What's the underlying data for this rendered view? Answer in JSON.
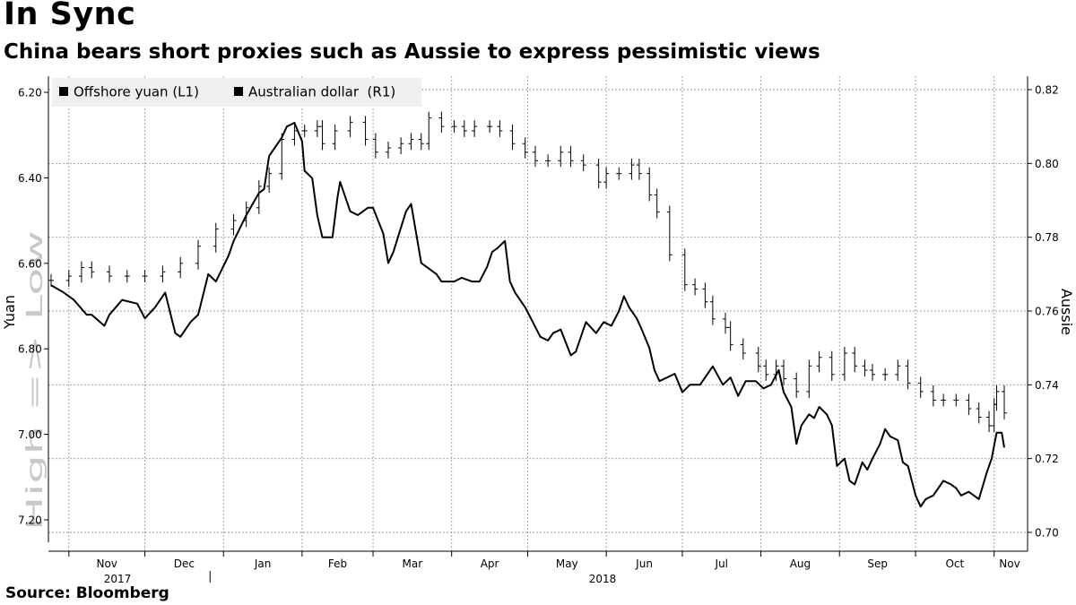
{
  "title": "In Sync",
  "subtitle": "China bears short proxies such as Aussie to express pessimistic views",
  "source": "Source: Bloomberg",
  "colors": {
    "line": "#000000",
    "grid": "#9a9a9a",
    "legend_bg": "#efefef",
    "watermark": "#c8c8c8"
  },
  "chart_data": {
    "type": "line",
    "left_axis": {
      "label": "Yuan",
      "inverted": true,
      "range": [
        6.2,
        7.2
      ],
      "ticks": [
        "6.20",
        "6.40",
        "6.60",
        "6.80",
        "7.00",
        "7.20"
      ]
    },
    "right_axis": {
      "label": "Aussie",
      "range": [
        0.7,
        0.82
      ],
      "ticks": [
        "0.82",
        "0.80",
        "0.78",
        "0.76",
        "0.74",
        "0.72",
        "0.70"
      ]
    },
    "direction_note": "High => Low",
    "x_axis": {
      "months": [
        "Nov",
        "Dec",
        "Jan",
        "Feb",
        "Mar",
        "Apr",
        "May",
        "Jun",
        "Jul",
        "Aug",
        "Sep",
        "Oct",
        "Nov"
      ],
      "years": [
        "2017",
        "2018"
      ],
      "range": [
        "2017-10-25",
        "2018-11-05"
      ]
    },
    "grid": true,
    "legend_position": "top-left",
    "series": [
      {
        "name": "Offshore yuan (L1)",
        "axis": "left",
        "style": "ohlc-bars",
        "points": [
          [
            "2017-10-25",
            6.64
          ],
          [
            "2017-11-01",
            6.63
          ],
          [
            "2017-11-06",
            6.61
          ],
          [
            "2017-11-10",
            6.62
          ],
          [
            "2017-11-17",
            6.63
          ],
          [
            "2017-11-24",
            6.63
          ],
          [
            "2017-12-01",
            6.63
          ],
          [
            "2017-12-08",
            6.62
          ],
          [
            "2017-12-15",
            6.6
          ],
          [
            "2017-12-22",
            6.56
          ],
          [
            "2017-12-29",
            6.52
          ],
          [
            "2018-01-05",
            6.5
          ],
          [
            "2018-01-10",
            6.47
          ],
          [
            "2018-01-15",
            6.42
          ],
          [
            "2018-01-19",
            6.39
          ],
          [
            "2018-01-24",
            6.31
          ],
          [
            "2018-01-29",
            6.29
          ],
          [
            "2018-02-02",
            6.29
          ],
          [
            "2018-02-07",
            6.28
          ],
          [
            "2018-02-09",
            6.32
          ],
          [
            "2018-02-14",
            6.29
          ],
          [
            "2018-02-20",
            6.27
          ],
          [
            "2018-02-26",
            6.31
          ],
          [
            "2018-03-02",
            6.34
          ],
          [
            "2018-03-07",
            6.33
          ],
          [
            "2018-03-12",
            6.32
          ],
          [
            "2018-03-16",
            6.31
          ],
          [
            "2018-03-20",
            6.32
          ],
          [
            "2018-03-23",
            6.26
          ],
          [
            "2018-03-28",
            6.28
          ],
          [
            "2018-04-02",
            6.28
          ],
          [
            "2018-04-06",
            6.29
          ],
          [
            "2018-04-10",
            6.28
          ],
          [
            "2018-04-16",
            6.28
          ],
          [
            "2018-04-20",
            6.29
          ],
          [
            "2018-04-25",
            6.32
          ],
          [
            "2018-04-30",
            6.34
          ],
          [
            "2018-05-04",
            6.36
          ],
          [
            "2018-05-09",
            6.36
          ],
          [
            "2018-05-14",
            6.34
          ],
          [
            "2018-05-18",
            6.36
          ],
          [
            "2018-05-23",
            6.37
          ],
          [
            "2018-05-29",
            6.41
          ],
          [
            "2018-06-01",
            6.39
          ],
          [
            "2018-06-06",
            6.39
          ],
          [
            "2018-06-11",
            6.37
          ],
          [
            "2018-06-14",
            6.39
          ],
          [
            "2018-06-18",
            6.44
          ],
          [
            "2018-06-21",
            6.48
          ],
          [
            "2018-06-26",
            6.58
          ],
          [
            "2018-07-02",
            6.65
          ],
          [
            "2018-07-06",
            6.66
          ],
          [
            "2018-07-10",
            6.69
          ],
          [
            "2018-07-13",
            6.73
          ],
          [
            "2018-07-18",
            6.75
          ],
          [
            "2018-07-20",
            6.79
          ],
          [
            "2018-07-25",
            6.81
          ],
          [
            "2018-07-31",
            6.84
          ],
          [
            "2018-08-03",
            6.86
          ],
          [
            "2018-08-07",
            6.84
          ],
          [
            "2018-08-10",
            6.87
          ],
          [
            "2018-08-15",
            6.9
          ],
          [
            "2018-08-20",
            6.84
          ],
          [
            "2018-08-24",
            6.82
          ],
          [
            "2018-08-29",
            6.86
          ],
          [
            "2018-09-03",
            6.81
          ],
          [
            "2018-09-07",
            6.84
          ],
          [
            "2018-09-11",
            6.85
          ],
          [
            "2018-09-14",
            6.86
          ],
          [
            "2018-09-19",
            6.86
          ],
          [
            "2018-09-24",
            6.84
          ],
          [
            "2018-09-28",
            6.88
          ],
          [
            "2018-10-03",
            6.9
          ],
          [
            "2018-10-08",
            6.92
          ],
          [
            "2018-10-12",
            6.92
          ],
          [
            "2018-10-17",
            6.92
          ],
          [
            "2018-10-22",
            6.94
          ],
          [
            "2018-10-26",
            6.96
          ],
          [
            "2018-10-30",
            6.98
          ],
          [
            "2018-11-01",
            6.93
          ],
          [
            "2018-11-02",
            6.9
          ],
          [
            "2018-11-05",
            6.95
          ]
        ]
      },
      {
        "name": "Australian dollar  (R1)",
        "axis": "right",
        "style": "line",
        "points": [
          [
            "2017-10-25",
            0.767
          ],
          [
            "2017-10-30",
            0.765
          ],
          [
            "2017-11-03",
            0.763
          ],
          [
            "2017-11-08",
            0.759
          ],
          [
            "2017-11-10",
            0.759
          ],
          [
            "2017-11-15",
            0.756
          ],
          [
            "2017-11-17",
            0.759
          ],
          [
            "2017-11-22",
            0.763
          ],
          [
            "2017-11-28",
            0.762
          ],
          [
            "2017-12-01",
            0.758
          ],
          [
            "2017-12-05",
            0.761
          ],
          [
            "2017-12-09",
            0.765
          ],
          [
            "2017-12-13",
            0.754
          ],
          [
            "2017-12-15",
            0.753
          ],
          [
            "2017-12-19",
            0.757
          ],
          [
            "2017-12-22",
            0.759
          ],
          [
            "2017-12-26",
            0.77
          ],
          [
            "2017-12-29",
            0.768
          ],
          [
            "2018-01-03",
            0.775
          ],
          [
            "2018-01-05",
            0.779
          ],
          [
            "2018-01-10",
            0.786
          ],
          [
            "2018-01-15",
            0.792
          ],
          [
            "2018-01-17",
            0.793
          ],
          [
            "2018-01-19",
            0.802
          ],
          [
            "2018-01-24",
            0.807
          ],
          [
            "2018-01-26",
            0.81
          ],
          [
            "2018-01-29",
            0.811
          ],
          [
            "2018-02-01",
            0.806
          ],
          [
            "2018-02-02",
            0.798
          ],
          [
            "2018-02-05",
            0.796
          ],
          [
            "2018-02-07",
            0.786
          ],
          [
            "2018-02-09",
            0.78
          ],
          [
            "2018-02-13",
            0.78
          ],
          [
            "2018-02-15",
            0.791
          ],
          [
            "2018-02-16",
            0.795
          ],
          [
            "2018-02-20",
            0.787
          ],
          [
            "2018-02-23",
            0.786
          ],
          [
            "2018-02-27",
            0.788
          ],
          [
            "2018-03-01",
            0.788
          ],
          [
            "2018-03-05",
            0.781
          ],
          [
            "2018-03-07",
            0.773
          ],
          [
            "2018-03-09",
            0.776
          ],
          [
            "2018-03-14",
            0.787
          ],
          [
            "2018-03-16",
            0.789
          ],
          [
            "2018-03-20",
            0.773
          ],
          [
            "2018-03-22",
            0.772
          ],
          [
            "2018-03-26",
            0.77
          ],
          [
            "2018-03-28",
            0.768
          ],
          [
            "2018-04-02",
            0.768
          ],
          [
            "2018-04-05",
            0.769
          ],
          [
            "2018-04-09",
            0.768
          ],
          [
            "2018-04-12",
            0.768
          ],
          [
            "2018-04-15",
            0.772
          ],
          [
            "2018-04-17",
            0.776
          ],
          [
            "2018-04-19",
            0.777
          ],
          [
            "2018-04-22",
            0.779
          ],
          [
            "2018-04-24",
            0.768
          ],
          [
            "2018-04-26",
            0.765
          ],
          [
            "2018-04-30",
            0.761
          ],
          [
            "2018-05-03",
            0.757
          ],
          [
            "2018-05-06",
            0.753
          ],
          [
            "2018-05-09",
            0.752
          ],
          [
            "2018-05-11",
            0.754
          ],
          [
            "2018-05-14",
            0.755
          ],
          [
            "2018-05-18",
            0.748
          ],
          [
            "2018-05-20",
            0.749
          ],
          [
            "2018-05-24",
            0.757
          ],
          [
            "2018-05-28",
            0.754
          ],
          [
            "2018-05-31",
            0.757
          ],
          [
            "2018-06-03",
            0.756
          ],
          [
            "2018-06-06",
            0.76
          ],
          [
            "2018-06-08",
            0.764
          ],
          [
            "2018-06-10",
            0.761
          ],
          [
            "2018-06-13",
            0.758
          ],
          [
            "2018-06-15",
            0.755
          ],
          [
            "2018-06-18",
            0.75
          ],
          [
            "2018-06-20",
            0.744
          ],
          [
            "2018-06-22",
            0.741
          ],
          [
            "2018-06-25",
            0.742
          ],
          [
            "2018-06-28",
            0.743
          ],
          [
            "2018-07-01",
            0.738
          ],
          [
            "2018-07-04",
            0.74
          ],
          [
            "2018-07-08",
            0.74
          ],
          [
            "2018-07-10",
            0.742
          ],
          [
            "2018-07-13",
            0.745
          ],
          [
            "2018-07-17",
            0.74
          ],
          [
            "2018-07-20",
            0.742
          ],
          [
            "2018-07-23",
            0.737
          ],
          [
            "2018-07-26",
            0.741
          ],
          [
            "2018-07-30",
            0.741
          ],
          [
            "2018-08-02",
            0.739
          ],
          [
            "2018-08-05",
            0.74
          ],
          [
            "2018-08-08",
            0.744
          ],
          [
            "2018-08-10",
            0.738
          ],
          [
            "2018-08-13",
            0.734
          ],
          [
            "2018-08-15",
            0.724
          ],
          [
            "2018-08-17",
            0.729
          ],
          [
            "2018-08-20",
            0.732
          ],
          [
            "2018-08-22",
            0.731
          ],
          [
            "2018-08-24",
            0.734
          ],
          [
            "2018-08-27",
            0.732
          ],
          [
            "2018-08-29",
            0.729
          ],
          [
            "2018-08-31",
            0.718
          ],
          [
            "2018-09-03",
            0.72
          ],
          [
            "2018-09-05",
            0.714
          ],
          [
            "2018-09-07",
            0.713
          ],
          [
            "2018-09-10",
            0.719
          ],
          [
            "2018-09-12",
            0.717
          ],
          [
            "2018-09-14",
            0.72
          ],
          [
            "2018-09-17",
            0.724
          ],
          [
            "2018-09-19",
            0.728
          ],
          [
            "2018-09-21",
            0.726
          ],
          [
            "2018-09-24",
            0.725
          ],
          [
            "2018-09-26",
            0.719
          ],
          [
            "2018-09-28",
            0.718
          ],
          [
            "2018-10-01",
            0.71
          ],
          [
            "2018-10-03",
            0.707
          ],
          [
            "2018-10-05",
            0.709
          ],
          [
            "2018-10-08",
            0.71
          ],
          [
            "2018-10-10",
            0.712
          ],
          [
            "2018-10-12",
            0.714
          ],
          [
            "2018-10-15",
            0.713
          ],
          [
            "2018-10-17",
            0.712
          ],
          [
            "2018-10-19",
            0.71
          ],
          [
            "2018-10-22",
            0.711
          ],
          [
            "2018-10-24",
            0.71
          ],
          [
            "2018-10-26",
            0.709
          ],
          [
            "2018-10-29",
            0.716
          ],
          [
            "2018-10-31",
            0.72
          ],
          [
            "2018-11-02",
            0.727
          ],
          [
            "2018-11-04",
            0.727
          ],
          [
            "2018-11-05",
            0.723
          ]
        ]
      }
    ]
  }
}
